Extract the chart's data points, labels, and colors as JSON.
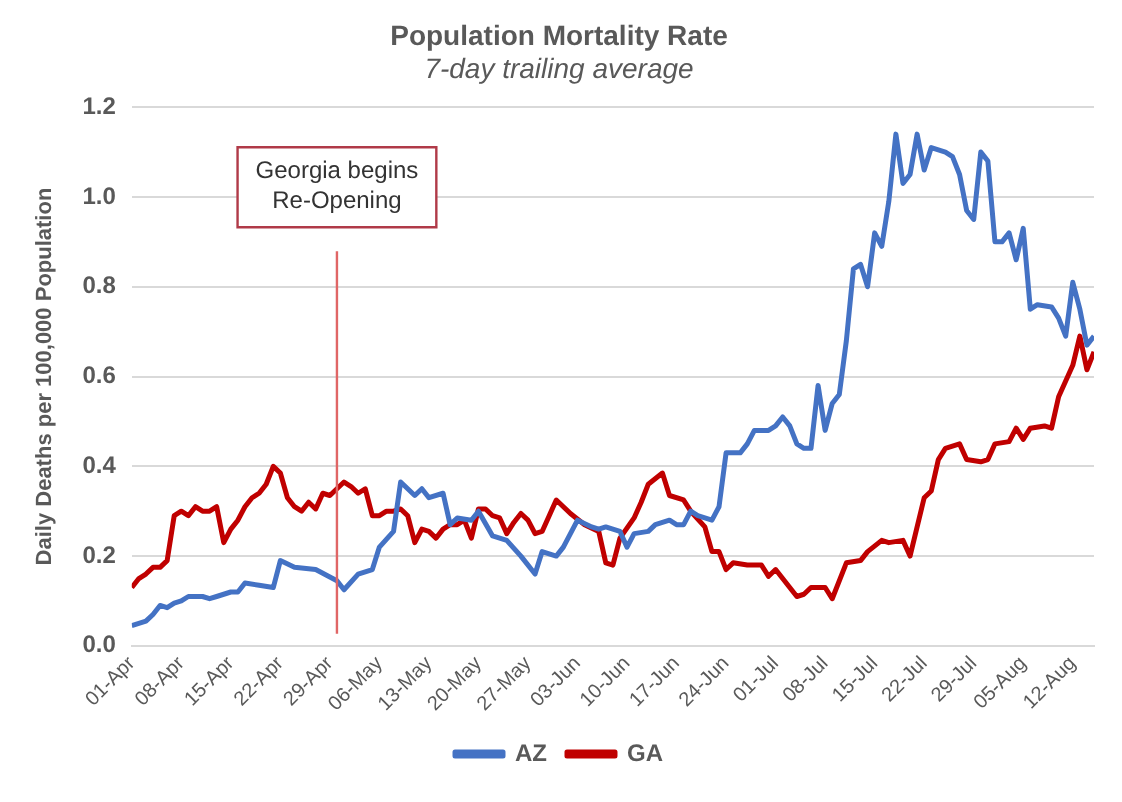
{
  "chart_data": {
    "type": "line",
    "title": "Population Mortality Rate",
    "subtitle": "7-day trailing average",
    "ylabel": "Daily Deaths per 100,000 Population",
    "xlim": [
      "--04-01",
      "--08-15"
    ],
    "xticks": [
      {
        "value": "--04-01",
        "label": "01-Apr"
      },
      {
        "value": "--04-08",
        "label": "08-Apr"
      },
      {
        "value": "--04-15",
        "label": "15-Apr"
      },
      {
        "value": "--04-22",
        "label": "22-Apr"
      },
      {
        "value": "--04-29",
        "label": "29-Apr"
      },
      {
        "value": "--05-06",
        "label": "06-May"
      },
      {
        "value": "--05-13",
        "label": "13-May"
      },
      {
        "value": "--05-20",
        "label": "20-May"
      },
      {
        "value": "--05-27",
        "label": "27-May"
      },
      {
        "value": "--06-03",
        "label": "03-Jun"
      },
      {
        "value": "--06-10",
        "label": "10-Jun"
      },
      {
        "value": "--06-17",
        "label": "17-Jun"
      },
      {
        "value": "--06-24",
        "label": "24-Jun"
      },
      {
        "value": "--07-01",
        "label": "01-Jul"
      },
      {
        "value": "--07-08",
        "label": "08-Jul"
      },
      {
        "value": "--07-15",
        "label": "15-Jul"
      },
      {
        "value": "--07-22",
        "label": "22-Jul"
      },
      {
        "value": "--07-29",
        "label": "29-Jul"
      },
      {
        "value": "--08-05",
        "label": "05-Aug"
      },
      {
        "value": "--08-12",
        "label": "12-Aug"
      }
    ],
    "ylim": [
      0,
      1.2
    ],
    "yticks": [
      {
        "value": 0,
        "label": "0.0"
      },
      {
        "value": 0.2,
        "label": "0.2"
      },
      {
        "value": 0.4,
        "label": "0.4"
      },
      {
        "value": 0.6,
        "label": "0.6"
      },
      {
        "value": 0.8,
        "label": "0.8"
      },
      {
        "value": 1.0,
        "label": "1.0"
      },
      {
        "value": 1.2,
        "label": "1.2"
      }
    ],
    "grid": "y",
    "legend": "bottom",
    "marker": "none",
    "line_style": "solid",
    "ref_lines": [
      {
        "axis": "x",
        "value": "--04-30",
        "label": "Georgia begins Re-Opening",
        "color": "#e06666"
      }
    ],
    "series": [
      {
        "name": "AZ",
        "color": "#4472c4",
        "x": [
          "--04-01",
          "--04-03",
          "--04-04",
          "--04-05",
          "--04-06",
          "--04-07",
          "--04-08",
          "--04-09",
          "--04-11",
          "--04-12",
          "--04-13",
          "--04-14",
          "--04-15",
          "--04-16",
          "--04-17",
          "--04-19",
          "--04-21",
          "--04-22",
          "--04-24",
          "--04-27",
          "--04-30",
          "--05-01",
          "--05-03",
          "--05-05",
          "--05-06",
          "--05-08",
          "--05-09",
          "--05-10",
          "--05-11",
          "--05-12",
          "--05-13",
          "--05-15",
          "--05-16",
          "--05-17",
          "--05-19",
          "--05-20",
          "--05-22",
          "--05-24",
          "--05-26",
          "--05-28",
          "--05-29",
          "--05-31",
          "--06-01",
          "--06-03",
          "--06-05",
          "--06-06",
          "--06-07",
          "--06-09",
          "--06-10",
          "--06-11",
          "--06-13",
          "--06-14",
          "--06-16",
          "--06-17",
          "--06-18",
          "--06-19",
          "--06-20",
          "--06-22",
          "--06-23",
          "--06-24",
          "--06-26",
          "--06-27",
          "--06-28",
          "--06-30",
          "--07-01",
          "--07-02",
          "--07-03",
          "--07-04",
          "--07-05",
          "--07-06",
          "--07-07",
          "--07-08",
          "--07-09",
          "--07-10",
          "--07-11",
          "--07-12",
          "--07-13",
          "--07-14",
          "--07-15",
          "--07-16",
          "--07-17",
          "--07-18",
          "--07-19",
          "--07-20",
          "--07-21",
          "--07-22",
          "--07-23",
          "--07-25",
          "--07-26",
          "--07-27",
          "--07-28",
          "--07-29",
          "--07-30",
          "--07-31",
          "--08-01",
          "--08-02",
          "--08-03",
          "--08-04",
          "--08-05",
          "--08-06",
          "--08-07",
          "--08-09",
          "--08-10",
          "--08-11",
          "--08-12",
          "--08-13",
          "--08-14",
          "--08-15"
        ],
        "values": [
          0.045,
          0.055,
          0.07,
          0.09,
          0.085,
          0.095,
          0.1,
          0.11,
          0.11,
          0.105,
          0.11,
          0.115,
          0.12,
          0.12,
          0.14,
          0.135,
          0.13,
          0.19,
          0.175,
          0.17,
          0.145,
          0.125,
          0.16,
          0.17,
          0.22,
          0.255,
          0.365,
          0.35,
          0.335,
          0.35,
          0.33,
          0.34,
          0.27,
          0.285,
          0.28,
          0.3,
          0.245,
          0.235,
          0.2,
          0.16,
          0.21,
          0.2,
          0.22,
          0.28,
          0.265,
          0.26,
          0.265,
          0.255,
          0.22,
          0.25,
          0.255,
          0.27,
          0.28,
          0.27,
          0.27,
          0.3,
          0.29,
          0.28,
          0.31,
          0.43,
          0.43,
          0.45,
          0.48,
          0.48,
          0.49,
          0.51,
          0.49,
          0.45,
          0.44,
          0.44,
          0.58,
          0.48,
          0.54,
          0.56,
          0.68,
          0.84,
          0.85,
          0.8,
          0.92,
          0.89,
          0.99,
          1.14,
          1.03,
          1.05,
          1.14,
          1.06,
          1.11,
          1.1,
          1.09,
          1.05,
          0.97,
          0.95,
          1.1,
          1.08,
          0.9,
          0.9,
          0.92,
          0.86,
          0.93,
          0.75,
          0.76,
          0.755,
          0.73,
          0.69,
          0.81,
          0.75,
          0.67,
          0.69
        ]
      },
      {
        "name": "GA",
        "color": "#c00000",
        "x": [
          "--04-01",
          "--04-02",
          "--04-03",
          "--04-04",
          "--04-05",
          "--04-06",
          "--04-07",
          "--04-08",
          "--04-09",
          "--04-10",
          "--04-11",
          "--04-12",
          "--04-13",
          "--04-14",
          "--04-15",
          "--04-16",
          "--04-17",
          "--04-18",
          "--04-19",
          "--04-20",
          "--04-21",
          "--04-22",
          "--04-23",
          "--04-24",
          "--04-25",
          "--04-26",
          "--04-27",
          "--04-28",
          "--04-29",
          "--04-30",
          "--05-01",
          "--05-02",
          "--05-03",
          "--05-04",
          "--05-05",
          "--05-06",
          "--05-07",
          "--05-08",
          "--05-09",
          "--05-10",
          "--05-11",
          "--05-12",
          "--05-13",
          "--05-14",
          "--05-15",
          "--05-16",
          "--05-17",
          "--05-18",
          "--05-19",
          "--05-20",
          "--05-21",
          "--05-22",
          "--05-23",
          "--05-24",
          "--05-25",
          "--05-26",
          "--05-27",
          "--05-28",
          "--05-29",
          "--05-30",
          "--05-31",
          "--06-01",
          "--06-02",
          "--06-04",
          "--06-06",
          "--06-07",
          "--06-08",
          "--06-09",
          "--06-11",
          "--06-12",
          "--06-13",
          "--06-15",
          "--06-16",
          "--06-18",
          "--06-19",
          "--06-21",
          "--06-22",
          "--06-23",
          "--06-24",
          "--06-25",
          "--06-27",
          "--06-29",
          "--06-30",
          "--07-01",
          "--07-03",
          "--07-04",
          "--07-05",
          "--07-06",
          "--07-08",
          "--07-09",
          "--07-11",
          "--07-13",
          "--07-14",
          "--07-16",
          "--07-17",
          "--07-19",
          "--07-20",
          "--07-22",
          "--07-23",
          "--07-24",
          "--07-25",
          "--07-26",
          "--07-27",
          "--07-28",
          "--07-30",
          "--07-31",
          "--08-01",
          "--08-03",
          "--08-04",
          "--08-05",
          "--08-06",
          "--08-08",
          "--08-09",
          "--08-10",
          "--08-12",
          "--08-13",
          "--08-14",
          "--08-15"
        ],
        "values": [
          0.13,
          0.15,
          0.16,
          0.175,
          0.175,
          0.19,
          0.29,
          0.3,
          0.29,
          0.31,
          0.3,
          0.3,
          0.31,
          0.23,
          0.26,
          0.28,
          0.31,
          0.33,
          0.34,
          0.36,
          0.4,
          0.385,
          0.33,
          0.31,
          0.3,
          0.32,
          0.305,
          0.34,
          0.335,
          0.35,
          0.365,
          0.355,
          0.34,
          0.35,
          0.29,
          0.29,
          0.3,
          0.3,
          0.305,
          0.29,
          0.23,
          0.26,
          0.255,
          0.24,
          0.26,
          0.27,
          0.27,
          0.28,
          0.24,
          0.305,
          0.305,
          0.29,
          0.285,
          0.25,
          0.275,
          0.295,
          0.28,
          0.25,
          0.255,
          0.29,
          0.325,
          0.31,
          0.295,
          0.27,
          0.255,
          0.185,
          0.18,
          0.24,
          0.285,
          0.32,
          0.36,
          0.385,
          0.335,
          0.325,
          0.3,
          0.265,
          0.21,
          0.21,
          0.17,
          0.185,
          0.18,
          0.18,
          0.155,
          0.17,
          0.13,
          0.11,
          0.115,
          0.13,
          0.13,
          0.105,
          0.185,
          0.19,
          0.21,
          0.235,
          0.23,
          0.235,
          0.2,
          0.33,
          0.345,
          0.415,
          0.44,
          0.445,
          0.45,
          0.415,
          0.41,
          0.415,
          0.45,
          0.455,
          0.485,
          0.46,
          0.485,
          0.49,
          0.485,
          0.555,
          0.625,
          0.69,
          0.615,
          0.655
        ]
      }
    ]
  }
}
